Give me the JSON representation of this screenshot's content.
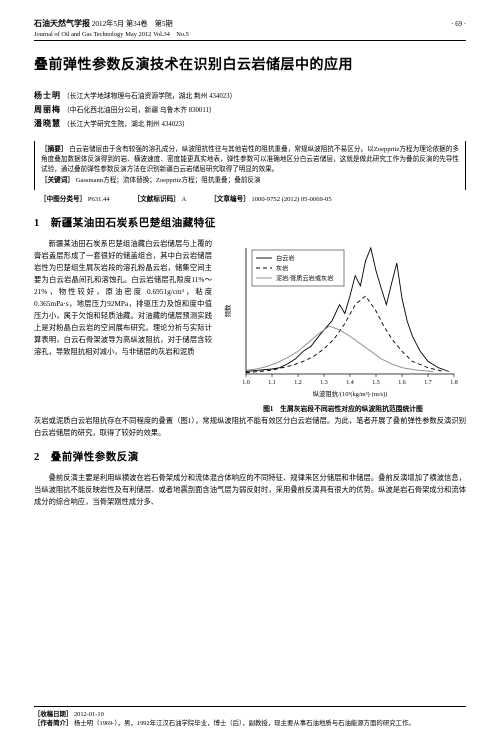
{
  "header": {
    "journal_cn": "石油天然气学报",
    "date_cn": "2012年5月",
    "vol_cn": "第34卷　第5期",
    "journal_en": "Journal of Oil and Gas Technology",
    "date_en": "May 2012",
    "vol_en": "Vol.34　No.5",
    "page_num": "· 69 ·"
  },
  "title": "叠前弹性参数反演技术在识别白云岩储层中的应用",
  "authors": [
    {
      "name": "杨士明",
      "affil": "（长江大学地球物理与石油资源学院，湖北 荆州 434023）"
    },
    {
      "name": "周丽梅",
      "affil": "（中石化西北油田分公司，新疆 乌鲁木齐 830011）"
    },
    {
      "name": "潘晓慧",
      "affil": "（长江大学研究生院，湖北 荆州 434023）"
    }
  ],
  "abstract": {
    "label": "［摘要］",
    "text": "白云岩储层由于含有较强的溶孔成分，纵波阻抗性往与其他岩性的阻抗重叠，常规纵波阻抗不易区分。以Zoeppritz方程为理论依据的多角度叠加数据体反演得到的岩、横波速度、密度能更真实地表，弹性参数可以准确地区分白云岩储层，这就是做此研究工作为叠前反演的先导性试验，通过叠前弹性参数反演方法在识别新疆白云岩储层研究取得了明显的效果。",
    "kw_label": "［关键词］",
    "kw": "Gassmann方程；流体替换；Zoeppritz方程；阻抗重叠；叠前反演",
    "clc_label": "［中图分类号］",
    "clc": "P631.44",
    "doc_label": "［文献标识码］",
    "doc": "A",
    "artno_label": "［文章编号］",
    "artno": "1000-9752 (2012) 05-0069-05"
  },
  "sec1": {
    "num": "1",
    "title": "新疆某油田石炭系巴楚组油藏特征",
    "para": "新疆某油田石炭系巴楚组油藏白云岩储层与上覆的膏岩盖层形成了一套很好的储盖组合，其中白云岩储层岩性为巴楚组生屑灰岩段的溶孔粉晶云岩，储集空间主要为白云岩晶间孔和溶蚀孔。白云岩储层孔隙度11%～21%，物性较好，原油密度 0.6951g/cm³，粘度0.365mPa·s，地层压力92MPa，排驱压力及饱和度中值压力小，属于欠饱和轻质油藏。对油藏的储层预测实践上是对粉晶白云岩的空间展布研究。理论分析与实际计算表明，白云石骨架波导为高纵波阻抗，对于储层含较溶孔，导致阻抗相对减小，与非储层的灰岩和泥质"
  },
  "after_fig": "灰岩或泥质白云岩阻抗存在不同程度的叠置（图1），常规纵波阻抗不能有效区分白云岩储层。为此，笔者开展了叠前弹性参数反演识别白云岩储层的研究，取得了较好的效果。",
  "sec2": {
    "num": "2",
    "title": "叠前弹性参数反演",
    "para": "叠前反演主要是利用纵横波在岩石骨架成分和流体混合体响应的不同特征、规律来区分储层和非储层。叠前反演增加了横波信息，当纵波阻抗不能反映岩性及有利储层、或者地震剖面含油气层为弱反射时，采用叠前反演具有很大的优势。纵波是岩石骨架成分和流体成分的综合响应，当骨架刚性成分多、"
  },
  "figure": {
    "caption": "图1　生屑灰岩段不同岩性对应的纵波阻抗范围统计图",
    "xlabel": "纵波阻抗/(10³(kg/m³)·(m/s))",
    "ylabel": "频数",
    "legend": [
      "白云岩",
      "灰岩",
      "泥岩/膏质云岩或灰岩"
    ],
    "xlim": [
      1.0,
      1.8
    ],
    "xticks": [
      1.0,
      1.1,
      1.2,
      1.3,
      1.4,
      1.5,
      1.6,
      1.7,
      1.8
    ],
    "background": "#ffffff",
    "axis_color": "#000000",
    "tick_fontsize": 6.0,
    "label_fontsize": 6.4,
    "legend_fontsize": 6.2,
    "series": [
      {
        "name": "白云岩",
        "color": "#000000",
        "dash": "none",
        "width": 0.9,
        "points": [
          [
            1.0,
            0.02
          ],
          [
            1.05,
            0.03
          ],
          [
            1.1,
            0.04
          ],
          [
            1.13,
            0.05
          ],
          [
            1.16,
            0.08
          ],
          [
            1.19,
            0.12
          ],
          [
            1.22,
            0.18
          ],
          [
            1.25,
            0.22
          ],
          [
            1.28,
            0.3
          ],
          [
            1.3,
            0.35
          ],
          [
            1.33,
            0.42
          ],
          [
            1.36,
            0.55
          ],
          [
            1.38,
            0.48
          ],
          [
            1.4,
            0.62
          ],
          [
            1.42,
            0.78
          ],
          [
            1.44,
            0.7
          ],
          [
            1.46,
            0.9
          ],
          [
            1.48,
            1.0
          ],
          [
            1.5,
            0.82
          ],
          [
            1.52,
            0.68
          ],
          [
            1.54,
            0.55
          ],
          [
            1.56,
            0.72
          ],
          [
            1.58,
            0.88
          ],
          [
            1.6,
            0.6
          ],
          [
            1.62,
            0.42
          ],
          [
            1.64,
            0.3
          ],
          [
            1.67,
            0.18
          ],
          [
            1.7,
            0.1
          ],
          [
            1.74,
            0.05
          ],
          [
            1.78,
            0.02
          ]
        ]
      },
      {
        "name": "灰岩",
        "color": "#000000",
        "dash": "4,3",
        "width": 0.9,
        "points": [
          [
            1.0,
            0.01
          ],
          [
            1.05,
            0.02
          ],
          [
            1.1,
            0.03
          ],
          [
            1.14,
            0.05
          ],
          [
            1.18,
            0.07
          ],
          [
            1.22,
            0.1
          ],
          [
            1.26,
            0.14
          ],
          [
            1.3,
            0.2
          ],
          [
            1.34,
            0.28
          ],
          [
            1.38,
            0.4
          ],
          [
            1.42,
            0.55
          ],
          [
            1.46,
            0.62
          ],
          [
            1.5,
            0.5
          ],
          [
            1.53,
            0.38
          ],
          [
            1.56,
            0.28
          ],
          [
            1.6,
            0.18
          ],
          [
            1.64,
            0.1
          ],
          [
            1.7,
            0.05
          ],
          [
            1.76,
            0.02
          ]
        ]
      },
      {
        "name": "泥岩/膏质云岩或灰岩",
        "color": "#888888",
        "dash": "none",
        "width": 0.9,
        "points": [
          [
            1.0,
            0.03
          ],
          [
            1.04,
            0.04
          ],
          [
            1.08,
            0.06
          ],
          [
            1.12,
            0.09
          ],
          [
            1.16,
            0.13
          ],
          [
            1.2,
            0.18
          ],
          [
            1.24,
            0.25
          ],
          [
            1.28,
            0.32
          ],
          [
            1.32,
            0.38
          ],
          [
            1.36,
            0.35
          ],
          [
            1.4,
            0.3
          ],
          [
            1.44,
            0.24
          ],
          [
            1.48,
            0.18
          ],
          [
            1.52,
            0.12
          ],
          [
            1.56,
            0.08
          ],
          [
            1.6,
            0.05
          ],
          [
            1.66,
            0.03
          ],
          [
            1.72,
            0.02
          ]
        ]
      }
    ]
  },
  "footer": {
    "recv_label": "［收稿日期］",
    "recv": "2012-01-10",
    "bio_label": "［作者简介］",
    "bio": "杨士明（1969-），男，1992年江汉石油学院毕业，博士（后），副教授，现主要从事石油地质与石油能源方面的研究工作。"
  }
}
